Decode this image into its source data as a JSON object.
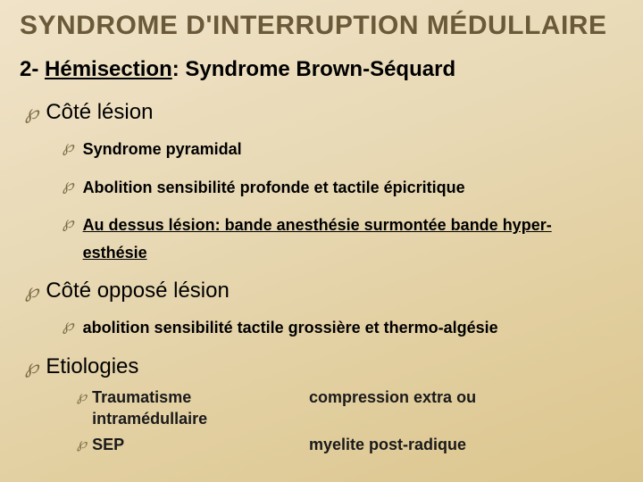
{
  "colors": {
    "background_gradient_start": "#f0e3c8",
    "background_gradient_end": "#dcc68e",
    "title_color": "#6b5a3a",
    "bullet_color": "#7a6a44",
    "text_color": "#000000"
  },
  "typography": {
    "title_fontsize_pt": 22,
    "subtitle_fontsize_pt": 18,
    "lvl1_fontsize_pt": 18,
    "lvl2_fontsize_pt": 13,
    "title_weight": 700,
    "body_weight": 700
  },
  "title": "SYNDROME D'INTERRUPTION MÉDULLAIRE",
  "subtitle_prefix": "2- ",
  "subtitle_underlined": "Hémisection",
  "subtitle_suffix": ": Syndrome Brown-Séquard",
  "bullet_glyph_lvl1": "℘",
  "bullet_glyph_lvl2": "℘",
  "bullet_glyph_lvl3": "℘",
  "sections": {
    "cote_lesion": {
      "label": "Côté lésion",
      "items": {
        "i0": "Syndrome pyramidal",
        "i1": "Abolition sensibilité profonde et tactile épicritique",
        "i2_ul_a": "Au dessus lésion: bande anesthésie surmontée bande hyper-",
        "i2_ul_b": "esthésie"
      }
    },
    "cote_oppose": {
      "label": "Côté opposé lésion",
      "items": {
        "i0": "abolition sensibilité tactile grossière et thermo-algésie"
      }
    },
    "etiologies": {
      "label": "Etiologies",
      "rows": {
        "r0_left": "Traumatisme",
        "r0_left2": "intramédullaire",
        "r0_right": "compression extra ou",
        "r1_left": "SEP",
        "r1_right": "myelite post-radique"
      }
    }
  }
}
